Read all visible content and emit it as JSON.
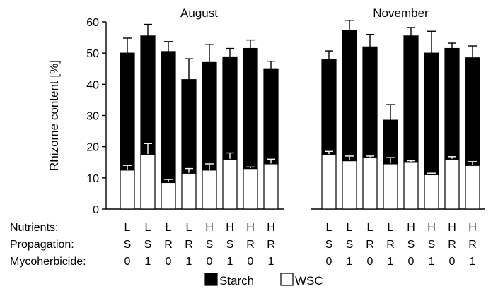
{
  "chart_data": {
    "type": "bar",
    "stacked": true,
    "ylabel": "Rhizome content [%]",
    "ylim": [
      0,
      60
    ],
    "yticks": [
      0,
      10,
      20,
      30,
      40,
      50,
      60
    ],
    "grid": false,
    "legend_position": "bottom-center",
    "legend": [
      {
        "name": "Starch",
        "color": "#000000"
      },
      {
        "name": "WSC",
        "color": "#ffffff"
      }
    ],
    "factor_labels": [
      "Nutrients:",
      "Propagation:",
      "Mycoherbicide:"
    ],
    "panels": [
      {
        "title": "August",
        "categories": [
          [
            "L",
            "S",
            "0"
          ],
          [
            "L",
            "S",
            "1"
          ],
          [
            "L",
            "R",
            "0"
          ],
          [
            "L",
            "R",
            "1"
          ],
          [
            "H",
            "S",
            "0"
          ],
          [
            "H",
            "S",
            "1"
          ],
          [
            "H",
            "R",
            "0"
          ],
          [
            "H",
            "R",
            "1"
          ]
        ],
        "series": [
          {
            "name": "WSC",
            "values": [
              12.5,
              17.5,
              8.5,
              11.5,
              12.5,
              16.0,
              13.0,
              14.5
            ],
            "errors": [
              1.5,
              3.5,
              1.0,
              1.5,
              2.0,
              2.0,
              0.5,
              1.5
            ]
          },
          {
            "name": "Starch",
            "values": [
              37.5,
              38.0,
              42.0,
              30.0,
              34.5,
              32.8,
              38.5,
              30.5
            ],
            "errors": [
              4.8,
              3.7,
              3.2,
              6.7,
              5.8,
              2.7,
              2.7,
              2.4
            ]
          }
        ]
      },
      {
        "title": "November",
        "categories": [
          [
            "L",
            "S",
            "0"
          ],
          [
            "L",
            "S",
            "1"
          ],
          [
            "L",
            "R",
            "0"
          ],
          [
            "L",
            "R",
            "1"
          ],
          [
            "H",
            "S",
            "0"
          ],
          [
            "H",
            "S",
            "1"
          ],
          [
            "H",
            "R",
            "0"
          ],
          [
            "H",
            "R",
            "1"
          ]
        ],
        "series": [
          {
            "name": "WSC",
            "values": [
              17.5,
              15.5,
              16.5,
              14.5,
              15.0,
              11.0,
              16.0,
              14.0
            ],
            "errors": [
              1.0,
              1.5,
              0.5,
              2.0,
              0.5,
              0.5,
              0.8,
              1.2
            ]
          },
          {
            "name": "Starch",
            "values": [
              30.5,
              41.7,
              35.5,
              14.0,
              40.5,
              39.0,
              35.5,
              34.5
            ],
            "errors": [
              2.7,
              3.3,
              4.0,
              5.0,
              2.7,
              7.0,
              1.7,
              3.8
            ]
          }
        ]
      }
    ]
  }
}
